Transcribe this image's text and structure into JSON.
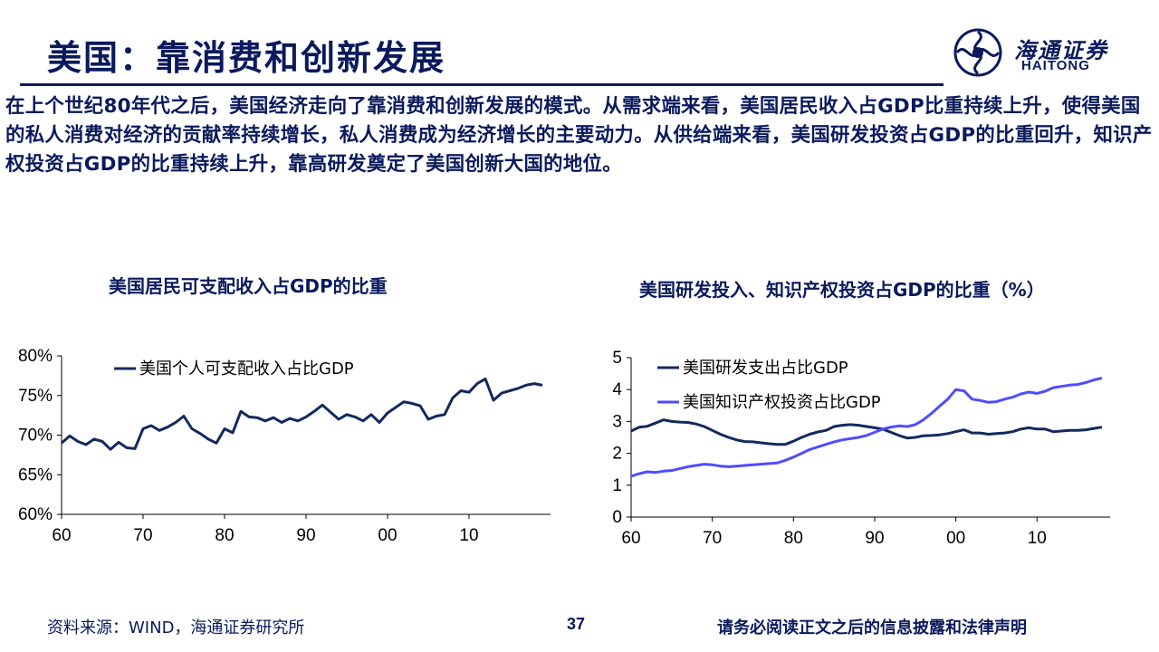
{
  "header": {
    "title": "美国：靠消费和创新发展",
    "logo_cn": "海通证券",
    "logo_en": "HAITONG"
  },
  "intro": "在上个世纪80年代之后，美国经济走向了靠消费和创新发展的模式。从需求端来看，美国居民收入占GDP比重持续上升，使得美国的私人消费对经济的贡献率持续增长，私人消费成为经济增长的主要动力。从供给端来看，美国研发投资占GDP的比重回升，知识产权投资占GDP的比重持续上升，靠高研发奠定了美国创新大国的地位。",
  "footer": {
    "source": "资料来源：WIND，海通证券研究所",
    "page": "37",
    "disclaimer": "请务必阅读正文之后的信息披露和法律声明"
  },
  "colors": {
    "navy": "#0a1a5c",
    "dark_series": "#13295e",
    "blue_series": "#4d4dff"
  },
  "chart_data": [
    {
      "type": "line",
      "title": "美国居民可支配收入占GDP的比重",
      "x_tick_labels": [
        "60",
        "70",
        "80",
        "90",
        "00",
        "10"
      ],
      "x_ticks": [
        1960,
        1970,
        1980,
        1990,
        2000,
        2010
      ],
      "xlim": [
        1960,
        2020
      ],
      "y_tick_labels": [
        "80%",
        "75%",
        "70%",
        "65%",
        "60%"
      ],
      "y_ticks": [
        80,
        75,
        70,
        65,
        60
      ],
      "ylim": [
        60,
        80
      ],
      "legend_position": "top-left",
      "series": [
        {
          "name": "美国个人可支配收入占比GDP",
          "color": "#13295e",
          "x": [
            1960,
            1961,
            1962,
            1963,
            1964,
            1965,
            1966,
            1967,
            1968,
            1969,
            1970,
            1971,
            1972,
            1973,
            1974,
            1975,
            1976,
            1977,
            1978,
            1979,
            1980,
            1981,
            1982,
            1983,
            1984,
            1985,
            1986,
            1987,
            1988,
            1989,
            1990,
            1991,
            1992,
            1993,
            1994,
            1995,
            1996,
            1997,
            1998,
            1999,
            2000,
            2001,
            2002,
            2003,
            2004,
            2005,
            2006,
            2007,
            2008,
            2009,
            2010,
            2011,
            2012,
            2013,
            2014,
            2015,
            2016,
            2017,
            2018,
            2019
          ],
          "values": [
            69.0,
            69.9,
            69.2,
            68.8,
            69.5,
            69.2,
            68.2,
            69.1,
            68.4,
            68.3,
            70.8,
            71.2,
            70.6,
            71.0,
            71.6,
            72.4,
            70.8,
            70.2,
            69.5,
            69.0,
            70.8,
            70.3,
            73.0,
            72.3,
            72.2,
            71.8,
            72.2,
            71.6,
            72.1,
            71.8,
            72.3,
            73.0,
            73.8,
            72.9,
            72.0,
            72.6,
            72.3,
            71.8,
            72.6,
            71.6,
            72.8,
            73.5,
            74.2,
            74.0,
            73.7,
            72.0,
            72.4,
            72.6,
            74.7,
            75.6,
            75.4,
            76.5,
            77.1,
            74.4,
            75.3,
            75.6,
            75.9,
            76.3,
            76.5,
            76.3
          ]
        }
      ]
    },
    {
      "type": "line",
      "title": "美国研发投入、知识产权投资占GDP的比重（%）",
      "x_tick_labels": [
        "60",
        "70",
        "80",
        "90",
        "00",
        "10"
      ],
      "x_ticks": [
        1960,
        1970,
        1980,
        1990,
        2000,
        2010
      ],
      "xlim": [
        1960,
        2019
      ],
      "y_tick_labels": [
        "5",
        "4",
        "3",
        "2",
        "1",
        "0"
      ],
      "y_ticks": [
        5,
        4,
        3,
        2,
        1,
        0
      ],
      "ylim": [
        0,
        5
      ],
      "legend_position": "top-left",
      "series": [
        {
          "name": "美国研发支出占比GDP",
          "color": "#13295e",
          "x": [
            1960,
            1961,
            1962,
            1963,
            1964,
            1965,
            1966,
            1967,
            1968,
            1969,
            1970,
            1971,
            1972,
            1973,
            1974,
            1975,
            1976,
            1977,
            1978,
            1979,
            1980,
            1981,
            1982,
            1983,
            1984,
            1985,
            1986,
            1987,
            1988,
            1989,
            1990,
            1991,
            1992,
            1993,
            1994,
            1995,
            1996,
            1997,
            1998,
            1999,
            2000,
            2001,
            2002,
            2003,
            2004,
            2005,
            2006,
            2007,
            2008,
            2009,
            2010,
            2011,
            2012,
            2013,
            2014,
            2015,
            2016,
            2017,
            2018
          ],
          "values": [
            2.7,
            2.82,
            2.85,
            2.95,
            3.05,
            3.0,
            2.98,
            2.97,
            2.92,
            2.84,
            2.72,
            2.6,
            2.5,
            2.42,
            2.37,
            2.36,
            2.33,
            2.3,
            2.28,
            2.28,
            2.38,
            2.5,
            2.6,
            2.67,
            2.72,
            2.84,
            2.88,
            2.9,
            2.88,
            2.84,
            2.8,
            2.76,
            2.66,
            2.56,
            2.48,
            2.5,
            2.55,
            2.56,
            2.58,
            2.62,
            2.68,
            2.74,
            2.64,
            2.64,
            2.6,
            2.62,
            2.64,
            2.68,
            2.76,
            2.8,
            2.76,
            2.76,
            2.68,
            2.7,
            2.72,
            2.72,
            2.74,
            2.78,
            2.82
          ]
        },
        {
          "name": "美国知识产权投资占比GDP",
          "color": "#4d4dff",
          "x": [
            1960,
            1961,
            1962,
            1963,
            1964,
            1965,
            1966,
            1967,
            1968,
            1969,
            1970,
            1971,
            1972,
            1973,
            1974,
            1975,
            1976,
            1977,
            1978,
            1979,
            1980,
            1981,
            1982,
            1983,
            1984,
            1985,
            1986,
            1987,
            1988,
            1989,
            1990,
            1991,
            1992,
            1993,
            1994,
            1995,
            1996,
            1997,
            1998,
            1999,
            2000,
            2001,
            2002,
            2003,
            2004,
            2005,
            2006,
            2007,
            2008,
            2009,
            2010,
            2011,
            2012,
            2013,
            2014,
            2015,
            2016,
            2017,
            2018
          ],
          "values": [
            1.28,
            1.36,
            1.42,
            1.4,
            1.44,
            1.46,
            1.52,
            1.58,
            1.62,
            1.66,
            1.64,
            1.6,
            1.58,
            1.6,
            1.62,
            1.64,
            1.66,
            1.68,
            1.7,
            1.78,
            1.88,
            2.0,
            2.12,
            2.2,
            2.28,
            2.36,
            2.42,
            2.46,
            2.5,
            2.56,
            2.66,
            2.76,
            2.82,
            2.86,
            2.84,
            2.9,
            3.05,
            3.25,
            3.48,
            3.7,
            4.0,
            3.96,
            3.7,
            3.66,
            3.6,
            3.62,
            3.7,
            3.76,
            3.86,
            3.92,
            3.88,
            3.95,
            4.06,
            4.1,
            4.14,
            4.16,
            4.22,
            4.3,
            4.36
          ]
        }
      ]
    }
  ]
}
